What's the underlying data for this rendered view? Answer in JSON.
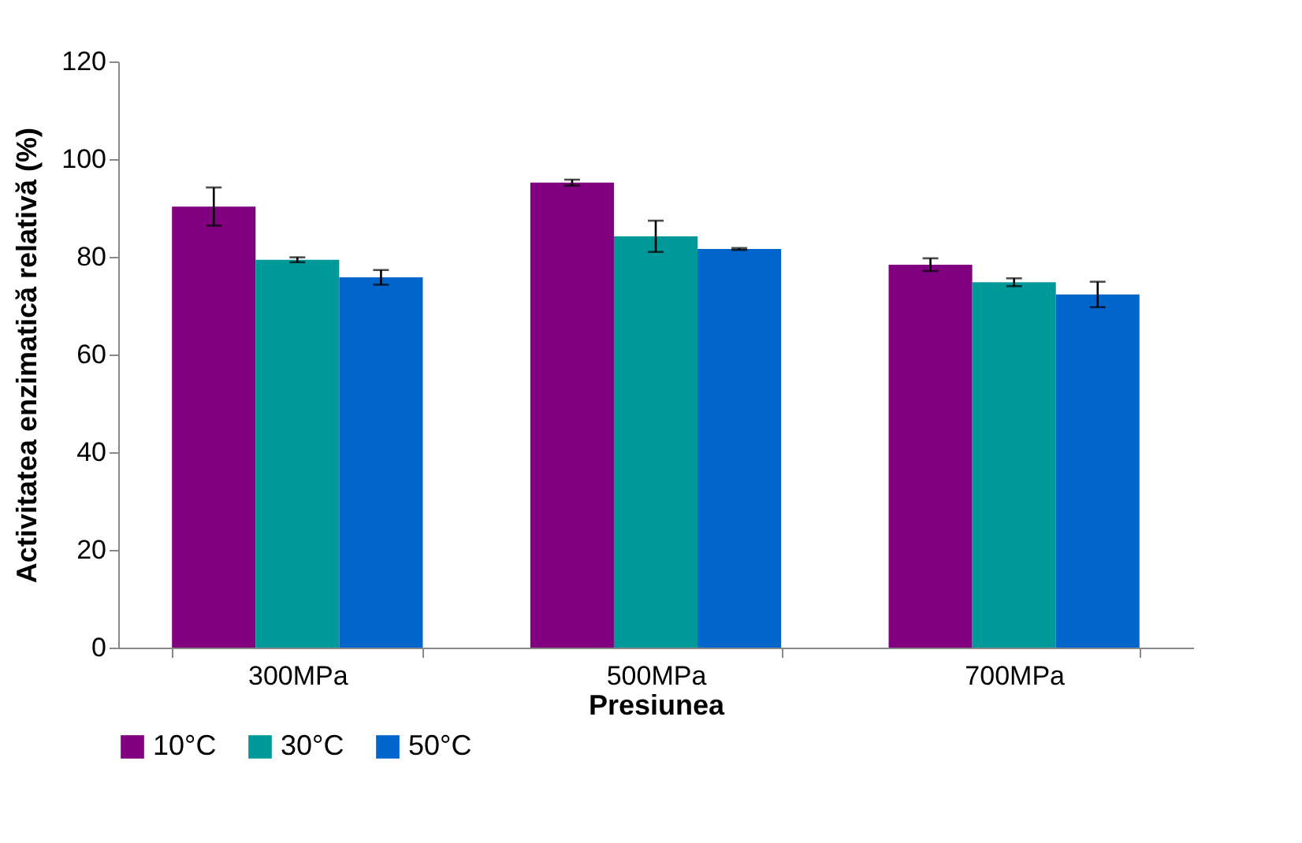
{
  "chart_data": {
    "type": "bar",
    "xlabel": "Presiunea",
    "ylabel": "Activitatea enzimatică relativă (%)",
    "categories": [
      "300MPa",
      "500MPa",
      "700MPa"
    ],
    "series": [
      {
        "name": "10°C",
        "color": "#800080",
        "values": [
          90.3,
          95.2,
          78.4
        ],
        "errors": [
          3.9,
          0.6,
          1.3
        ]
      },
      {
        "name": "30°C",
        "color": "#009999",
        "values": [
          79.4,
          84.2,
          74.8
        ],
        "errors": [
          0.5,
          3.2,
          0.8
        ]
      },
      {
        "name": "50°C",
        "color": "#0066cc",
        "values": [
          75.8,
          81.6,
          72.3
        ],
        "errors": [
          1.5,
          0.2,
          2.6
        ]
      }
    ],
    "ylim": [
      0,
      120
    ],
    "yticks": [
      0,
      20,
      40,
      60,
      80,
      100,
      120
    ],
    "grid": false,
    "legend": "bottom"
  }
}
